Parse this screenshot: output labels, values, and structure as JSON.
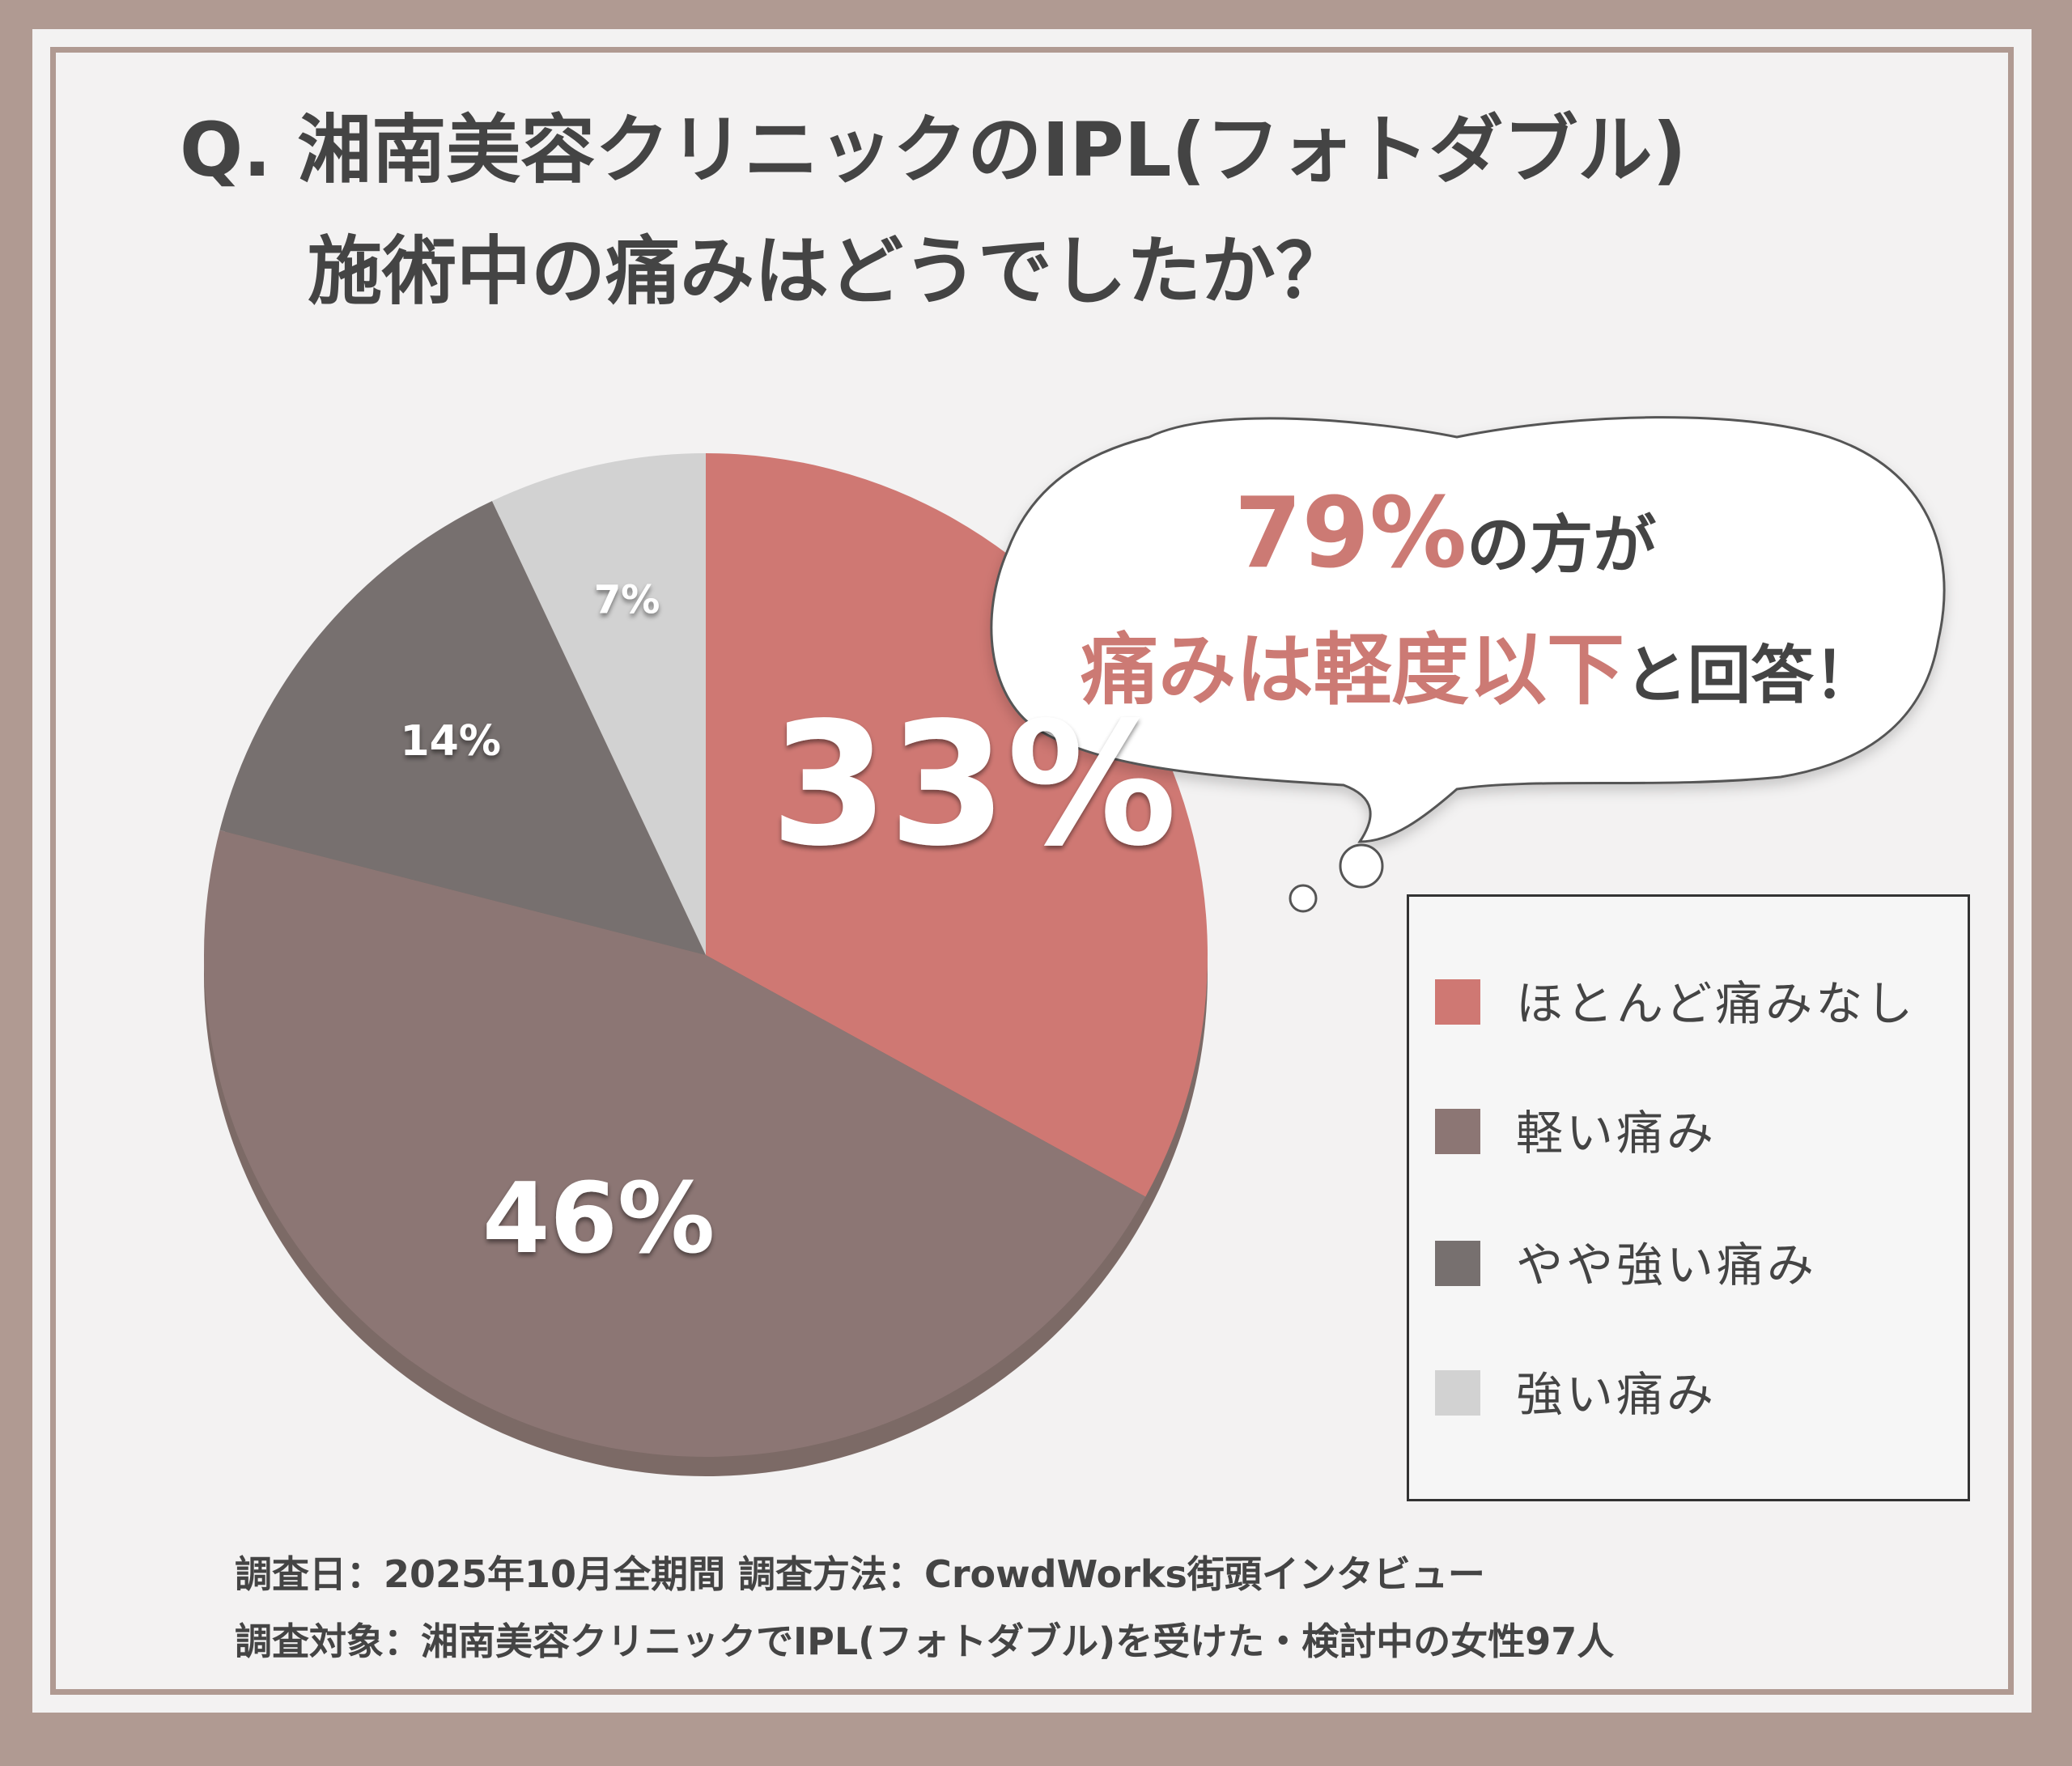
{
  "title": {
    "line1": "Q. 湘南美容クリニックのIPL(フォトダブル)",
    "line2": "施術中の痛みはどうでしたか？"
  },
  "callout": {
    "pct": "79%",
    "line1_rest": "の方が",
    "line2_accent": "痛みは軽度以下",
    "line2_rest": "と回答！"
  },
  "chart_data": {
    "type": "pie",
    "slices": [
      {
        "label": "ほとんど痛みなし",
        "value": 33,
        "display": "33%",
        "color": "#cf7873"
      },
      {
        "label": "軽い痛み",
        "value": 46,
        "display": "46%",
        "color": "#8c7674"
      },
      {
        "label": "やや強い痛み",
        "value": 14,
        "display": "14%",
        "color": "#77706f"
      },
      {
        "label": "強い痛み",
        "value": 7,
        "display": "7%",
        "color": "#d2d2d2"
      }
    ],
    "legend_position": "right"
  },
  "footer": {
    "line1": "調査日：2025年10月全期間  調査方法：CrowdWorks街頭インタビュー",
    "line2": "調査対象：湘南美容クリニックでIPL(フォトダブル)を受けた・検討中の女性97人"
  }
}
